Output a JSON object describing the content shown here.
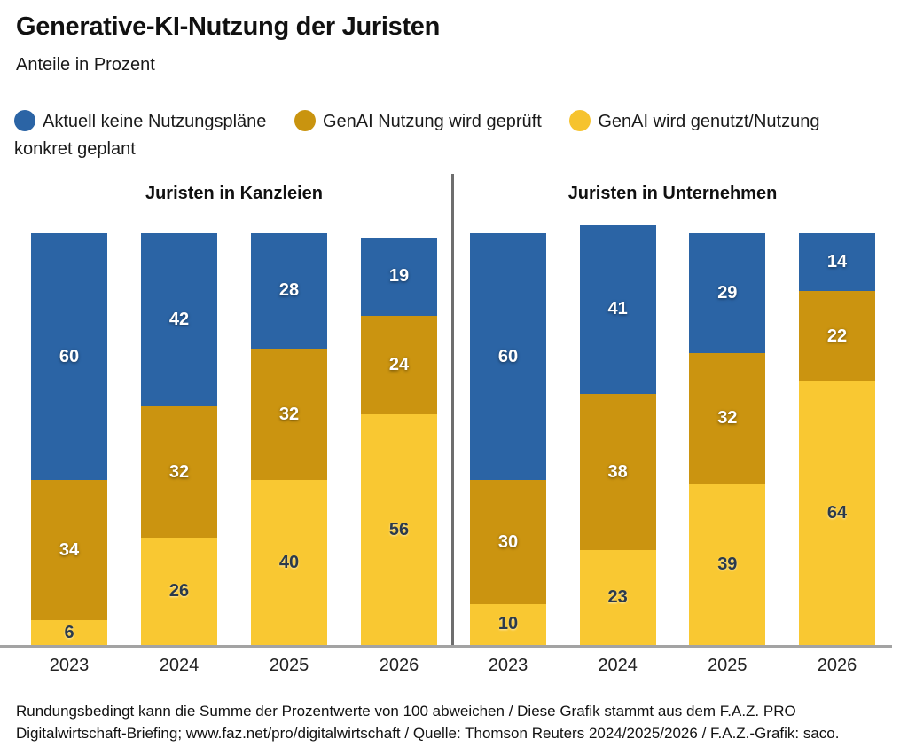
{
  "header": {
    "title": "Generative-KI-Nutzung der Juristen",
    "subtitle": "Anteile in Prozent"
  },
  "legend": {
    "items": [
      {
        "label": "Aktuell keine Nutzungspläne",
        "color": "#2b64a5"
      },
      {
        "label": "GenAI Nutzung wird geprüft",
        "color": "#c9940f"
      },
      {
        "label": "GenAI wird genutzt/Nutzung konkret geplant",
        "color": "#f6c32e"
      }
    ]
  },
  "chart_data": [
    {
      "type": "bar",
      "stacked": true,
      "title": "Juristen in Kanzleien",
      "categories": [
        "2023",
        "2024",
        "2025",
        "2026"
      ],
      "series": [
        {
          "name": "Aktuell keine Nutzungspläne",
          "color": "#2b64a5",
          "label_color": "#ffffff",
          "values": [
            60,
            42,
            28,
            19
          ]
        },
        {
          "name": "GenAI Nutzung wird geprüft",
          "color": "#cb9410",
          "label_color": "#ffffff",
          "values": [
            34,
            32,
            32,
            24
          ]
        },
        {
          "name": "GenAI wird genutzt/Nutzung konkret geplant",
          "color": "#f9c832",
          "label_color": "#2b3a4c",
          "values": [
            6,
            26,
            40,
            56
          ]
        }
      ],
      "unit": "%",
      "ylim": [
        0,
        102
      ],
      "grid": false,
      "legend_position": "top"
    },
    {
      "type": "bar",
      "stacked": true,
      "title": "Juristen in Unternehmen",
      "categories": [
        "2023",
        "2024",
        "2025",
        "2026"
      ],
      "series": [
        {
          "name": "Aktuell keine Nutzungspläne",
          "color": "#2b64a5",
          "label_color": "#ffffff",
          "values": [
            60,
            41,
            29,
            14
          ]
        },
        {
          "name": "GenAI Nutzung wird geprüft",
          "color": "#cb9410",
          "label_color": "#ffffff",
          "values": [
            30,
            38,
            32,
            22
          ]
        },
        {
          "name": "GenAI wird genutzt/Nutzung konkret geplant",
          "color": "#f9c832",
          "label_color": "#2b3a4c",
          "values": [
            10,
            23,
            39,
            64
          ]
        }
      ],
      "unit": "%",
      "ylim": [
        0,
        102
      ],
      "grid": false,
      "legend_position": "top"
    }
  ],
  "footer": {
    "lines": [
      "Rundungsbedingt kann die Summe der Prozentwerte von 100 abweichen / Diese Grafik stammt aus dem F.A.Z. PRO",
      "Digitalwirtschaft-Briefing; www.faz.net/pro/digitalwirtschaft / Quelle: Thomson Reuters 2024/2025/2026 / F.A.Z.-Grafik: saco."
    ]
  }
}
